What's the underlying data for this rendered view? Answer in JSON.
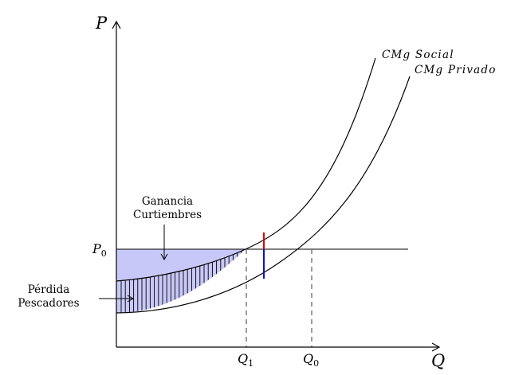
{
  "axes": {
    "y_label": "P",
    "x_label": "Q"
  },
  "curves": {
    "social": "CMg Social",
    "private": "CMg Privado"
  },
  "price_level": {
    "letter": "P",
    "sub": "0"
  },
  "quantities": {
    "q1_letter": "Q",
    "q1_sub": "1",
    "q0_letter": "Q",
    "q0_sub": "0"
  },
  "annotations": {
    "gain_line1": "Ganancia",
    "gain_line2": "Curtiembres",
    "loss_line1": "Pérdida",
    "loss_line2": "Pescadores"
  },
  "colors": {
    "shade_fill": "#c8c8f8",
    "axis": "#000000",
    "dashed": "#666666",
    "red_segment": "#e00000",
    "blue_segment": "#1010c0"
  }
}
